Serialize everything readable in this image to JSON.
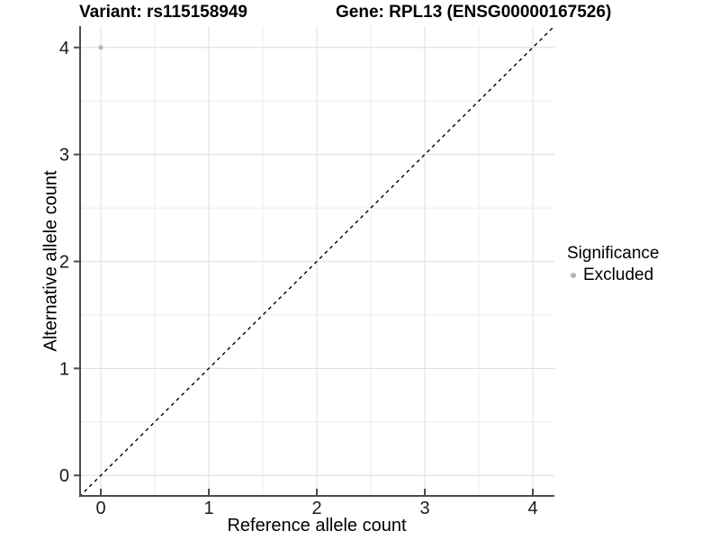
{
  "titles": {
    "variant": "Variant: rs115158949",
    "gene": "Gene: RPL13 (ENSG00000167526)"
  },
  "axes": {
    "x_label": "Reference allele count",
    "y_label": "Alternative allele count"
  },
  "legend": {
    "title": "Significance",
    "items": [
      {
        "label": "Excluded",
        "color": "#b4b4b4"
      }
    ]
  },
  "colors": {
    "background": "#ffffff",
    "axis_line": "#4d4d4d",
    "tick_mark": "#4d4d4d",
    "tick_label": "#1a1a1a",
    "grid_major": "#e2e2e2",
    "grid_minor": "#ededed",
    "reference_line": "#000000",
    "point": "#b4b4b4"
  },
  "chart_data": {
    "type": "scatter",
    "title": "Variant: rs115158949 — Gene: RPL13 (ENSG00000167526)",
    "xlabel": "Reference allele count",
    "ylabel": "Alternative allele count",
    "xlim": [
      -0.2,
      4.2
    ],
    "ylim": [
      -0.2,
      4.2
    ],
    "x_ticks": [
      0,
      1,
      2,
      3,
      4
    ],
    "y_ticks": [
      0,
      1,
      2,
      3,
      4
    ],
    "x_minor": [
      0.5,
      1.5,
      2.5,
      3.5
    ],
    "y_minor": [
      0.5,
      1.5,
      2.5,
      3.5
    ],
    "grid": true,
    "legend_position": "right",
    "series": [
      {
        "name": "Excluded",
        "color": "#b4b4b4",
        "points": [
          {
            "x": 0,
            "y": 4
          }
        ]
      }
    ],
    "reference_line": {
      "type": "identity y=x",
      "style": "dashed",
      "from": [
        -0.2,
        -0.2
      ],
      "to": [
        4.2,
        4.2
      ]
    }
  }
}
